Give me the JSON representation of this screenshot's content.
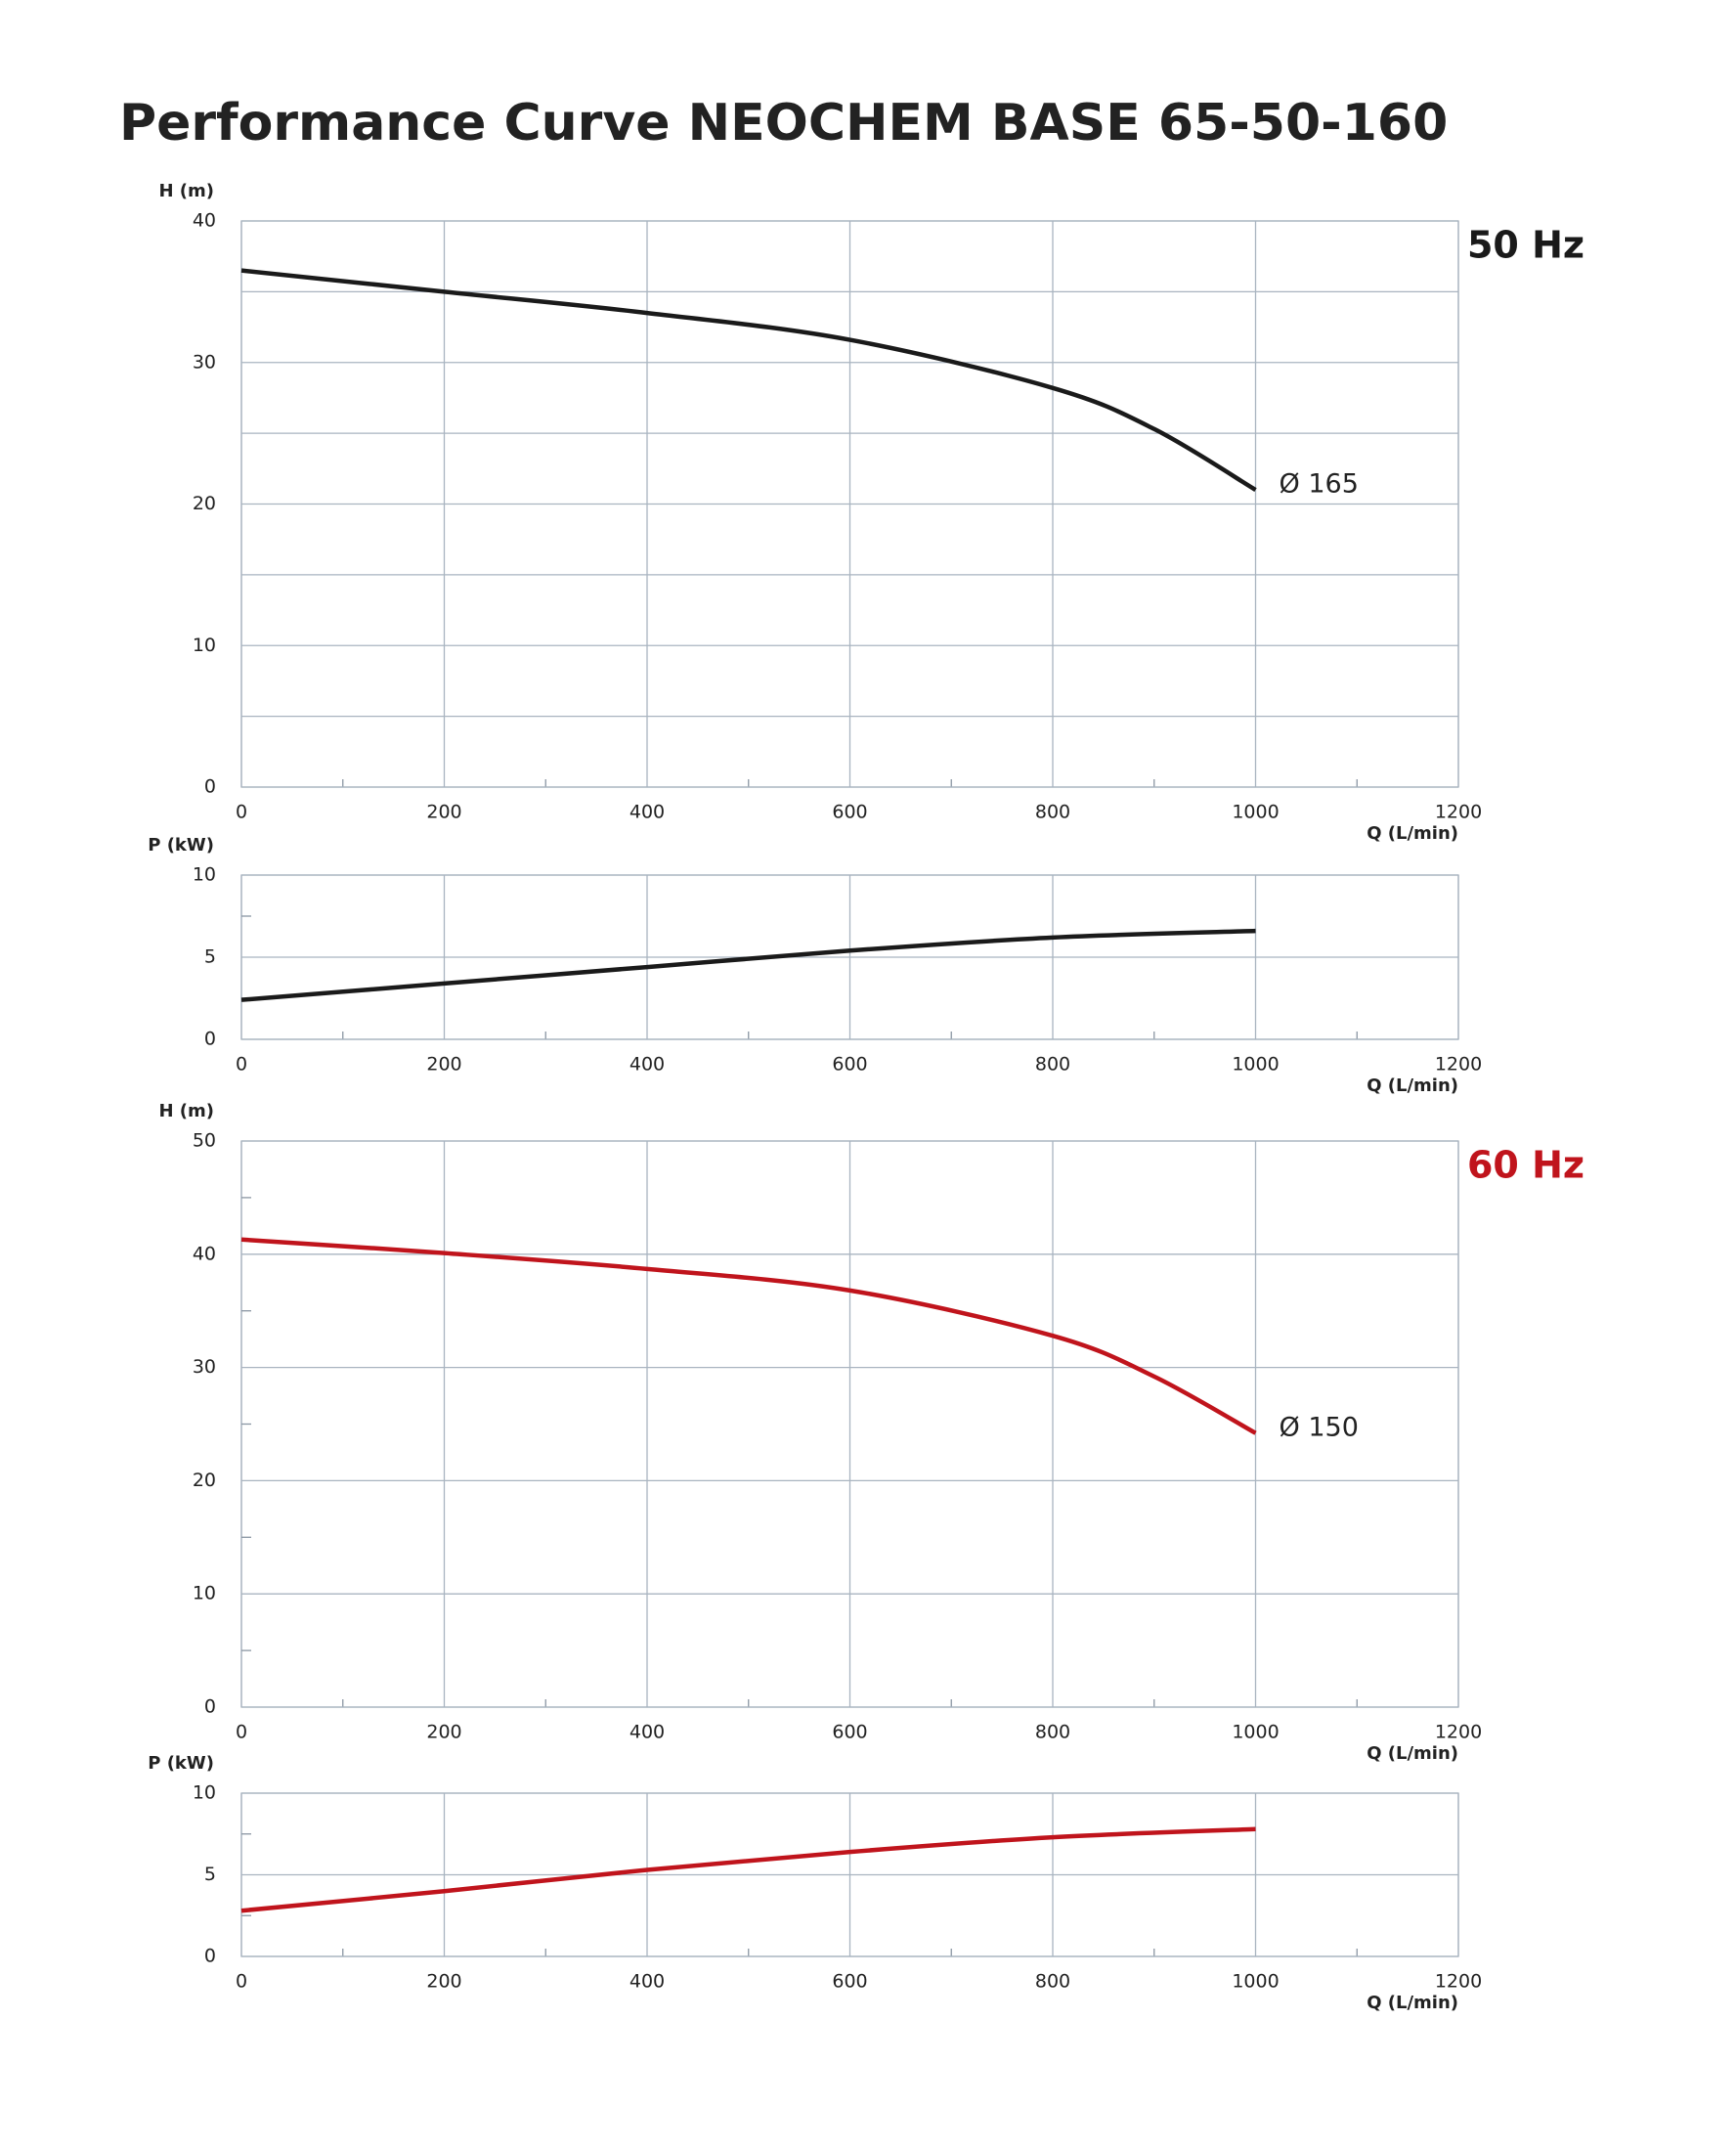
{
  "title": "Performance Curve  NEOCHEM BASE 65-50-160",
  "chart_data": [
    {
      "type": "line",
      "annotation": "50 Hz",
      "annotation_color": "#1a1a1a",
      "ylabel": "H (m)",
      "xlabel": "Q (L/min)",
      "xlim": [
        0,
        1200
      ],
      "xticks": [
        0,
        200,
        400,
        600,
        800,
        1000,
        1200
      ],
      "minor_xticks": [
        100,
        300,
        500,
        700,
        900,
        1100
      ],
      "ylim": [
        0,
        40
      ],
      "yticks": [
        0,
        10,
        20,
        30,
        40
      ],
      "minor_yticks": [
        5,
        15,
        25,
        35
      ],
      "minor_grid": true,
      "grid": true,
      "x": [
        0,
        200,
        400,
        600,
        800,
        900,
        1000
      ],
      "series": [
        {
          "name": "Ø 165",
          "color": "#1a1a1a",
          "values": [
            36.5,
            35,
            33.5,
            31.6,
            28.2,
            25.3,
            21
          ]
        }
      ]
    },
    {
      "type": "line",
      "ylabel": "P (kW)",
      "xlabel": "Q (L/min)",
      "xlim": [
        0,
        1200
      ],
      "xticks": [
        0,
        200,
        400,
        600,
        800,
        1000,
        1200
      ],
      "minor_xticks": [
        100,
        300,
        500,
        700,
        900,
        1100
      ],
      "ylim": [
        0,
        10
      ],
      "yticks": [
        0,
        5,
        10
      ],
      "minor_yticks": [
        2.5,
        7.5
      ],
      "minor_grid": false,
      "grid": true,
      "x": [
        0,
        200,
        400,
        600,
        800,
        1000
      ],
      "series": [
        {
          "color": "#1a1a1a",
          "values": [
            2.4,
            3.4,
            4.4,
            5.4,
            6.2,
            6.6
          ]
        }
      ]
    },
    {
      "type": "line",
      "annotation": "60 Hz",
      "annotation_color": "#c0141c",
      "ylabel": "H (m)",
      "xlabel": "Q (L/min)",
      "xlim": [
        0,
        1200
      ],
      "xticks": [
        0,
        200,
        400,
        600,
        800,
        1000,
        1200
      ],
      "minor_xticks": [
        100,
        300,
        500,
        700,
        900,
        1100
      ],
      "ylim": [
        0,
        50
      ],
      "yticks": [
        0,
        10,
        20,
        30,
        40,
        50
      ],
      "minor_yticks": [
        5,
        15,
        25,
        35,
        45
      ],
      "minor_grid": false,
      "grid": true,
      "x": [
        0,
        200,
        400,
        600,
        800,
        900,
        1000
      ],
      "series": [
        {
          "name": "Ø 150",
          "color": "#c0141c",
          "values": [
            41.3,
            40.1,
            38.7,
            36.8,
            32.8,
            29.2,
            24.2
          ]
        }
      ]
    },
    {
      "type": "line",
      "ylabel": "P (kW)",
      "xlabel": "Q (L/min)",
      "xlim": [
        0,
        1200
      ],
      "xticks": [
        0,
        200,
        400,
        600,
        800,
        1000,
        1200
      ],
      "minor_xticks": [
        100,
        300,
        500,
        700,
        900,
        1100
      ],
      "ylim": [
        0,
        10
      ],
      "yticks": [
        0,
        5,
        10
      ],
      "minor_yticks": [
        2.5,
        7.5
      ],
      "minor_grid": false,
      "grid": true,
      "x": [
        0,
        200,
        400,
        600,
        800,
        1000
      ],
      "series": [
        {
          "color": "#c0141c",
          "values": [
            2.8,
            4.0,
            5.3,
            6.4,
            7.3,
            7.8
          ]
        }
      ]
    }
  ]
}
